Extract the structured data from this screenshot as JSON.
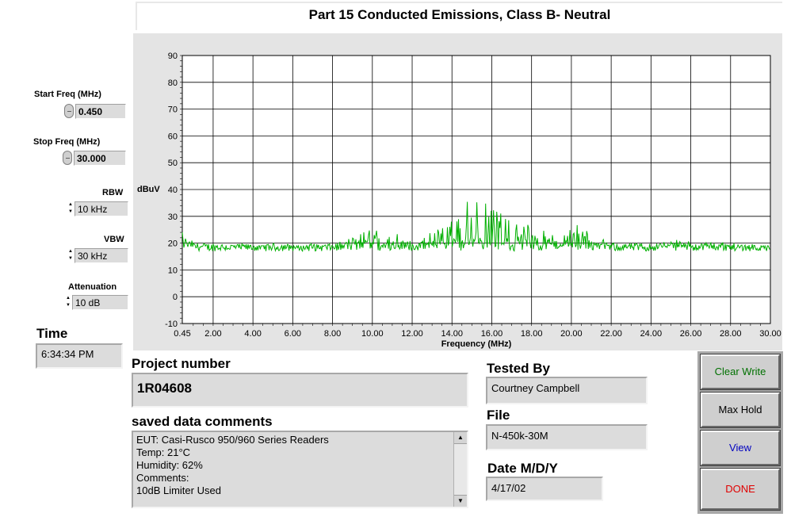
{
  "window": {
    "title": "Part 15 Conducted Emissions, Class B- Neutral"
  },
  "controls": {
    "start_freq": {
      "label": "Start Freq (MHz)",
      "value": "0.450"
    },
    "stop_freq": {
      "label": "Stop Freq (MHz)",
      "value": "30.000"
    },
    "rbw": {
      "label": "RBW",
      "value": "10 kHz"
    },
    "vbw": {
      "label": "VBW",
      "value": "30 kHz"
    },
    "attenuation": {
      "label": "Attenuation",
      "value": "10 dB"
    },
    "time": {
      "label": "Time",
      "value": "6:34:34 PM"
    }
  },
  "project": {
    "number_label": "Project number",
    "number": "1R04608",
    "comments_label": "saved data comments",
    "comments": [
      "EUT: Casi-Rusco 950/960 Series Readers",
      "Temp: 21°C",
      "Humidity: 62%",
      "Comments:",
      "10dB Limiter Used"
    ]
  },
  "test_info": {
    "tested_by_label": "Tested By",
    "tested_by": "Courtney Campbell",
    "file_label": "File",
    "file": "N-450k-30M",
    "date_label": "Date M/D/Y",
    "date": "4/17/02"
  },
  "buttons": {
    "clear_write": "Clear Write",
    "max_hold": "Max Hold",
    "view": "View",
    "done": "DONE"
  },
  "colors": {
    "trace": "#00b000",
    "clear_write_text": "#007000",
    "view_text": "#0000c0",
    "done_text": "#e00000"
  },
  "chart_data": {
    "type": "line",
    "xlabel": "Frequency (MHz)",
    "ylabel": "dBuV",
    "xlim": [
      0.45,
      30.0
    ],
    "ylim": [
      -10,
      90
    ],
    "x_ticks": [
      "0.45",
      "2.00",
      "4.00",
      "6.00",
      "8.00",
      "10.00",
      "12.00",
      "14.00",
      "16.00",
      "18.00",
      "20.00",
      "22.00",
      "24.00",
      "26.00",
      "28.00",
      "30.00"
    ],
    "x_tick_values": [
      0.45,
      2,
      4,
      6,
      8,
      10,
      12,
      14,
      16,
      18,
      20,
      22,
      24,
      26,
      28,
      30
    ],
    "y_ticks": [
      90,
      80,
      70,
      60,
      50,
      40,
      30,
      20,
      10,
      0,
      -10
    ],
    "grid": true,
    "series": [
      {
        "values_x": [
          0.45,
          0.6,
          0.8,
          1.0,
          1.5,
          2.0,
          2.5,
          3.0,
          3.5,
          4.0,
          4.5,
          5.0,
          5.5,
          6.0,
          6.5,
          7.0,
          7.5,
          8.0,
          8.5,
          9.0,
          9.5,
          10.0,
          10.5,
          11.0,
          11.5,
          12.0,
          12.5,
          13.0,
          13.5,
          14.0,
          14.5,
          15.0,
          15.5,
          16.0,
          16.5,
          17.0,
          17.5,
          18.0,
          18.5,
          19.0,
          19.5,
          20.0,
          20.5,
          21.0,
          21.5,
          22.0,
          22.5,
          23.0,
          23.5,
          24.0,
          24.5,
          25.0,
          25.5,
          26.0,
          26.5,
          27.0,
          27.5,
          28.0,
          28.5,
          29.0,
          29.5,
          30.0
        ],
        "values_y": [
          26,
          22,
          20,
          19,
          18,
          18,
          18,
          17,
          18,
          17,
          17,
          18,
          18,
          17,
          17,
          18,
          17,
          18,
          19,
          21,
          24,
          28,
          24,
          23,
          21,
          20,
          21,
          23,
          27,
          30,
          33,
          35,
          36,
          33,
          31,
          29,
          27,
          25,
          24,
          23,
          24,
          26,
          25,
          21,
          20,
          19,
          18,
          18,
          18,
          18,
          19,
          20,
          20,
          19,
          19,
          19,
          19,
          18,
          18,
          18,
          17,
          17
        ]
      }
    ]
  }
}
